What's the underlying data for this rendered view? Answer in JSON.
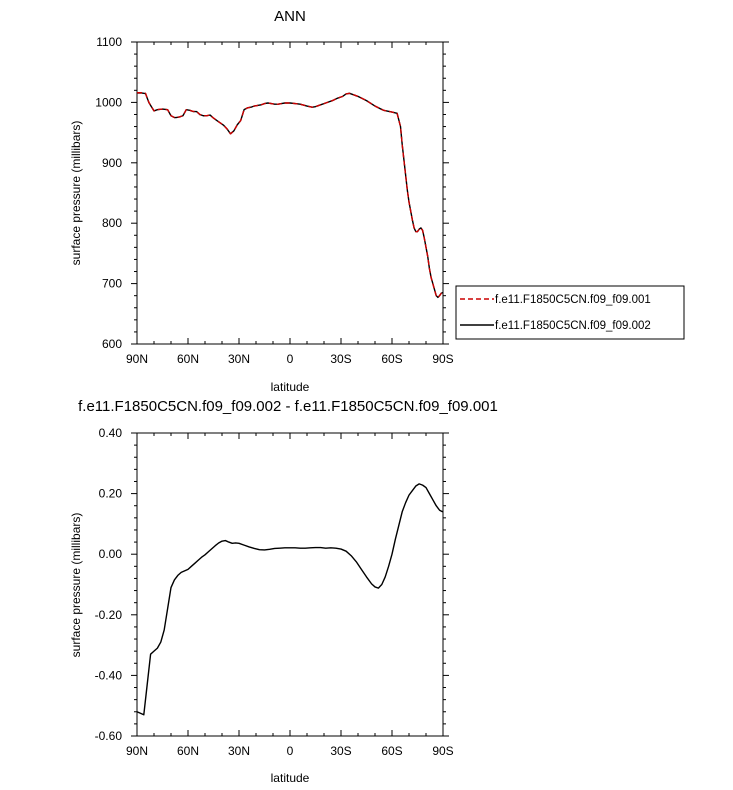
{
  "chart_data": [
    {
      "type": "line",
      "title": "ANN",
      "xlabel": "latitude",
      "ylabel": "surface pressure (millibars)",
      "xlim": [
        90,
        -90
      ],
      "ylim": [
        600,
        1100
      ],
      "x_ticks": [
        90,
        60,
        30,
        0,
        -30,
        -60,
        -90
      ],
      "x_tick_labels": [
        "90N",
        "60N",
        "30N",
        "0",
        "30S",
        "60S",
        "90S"
      ],
      "y_ticks": [
        600,
        700,
        800,
        900,
        1000,
        1100
      ],
      "y_tick_labels": [
        "600",
        "700",
        "800",
        "900",
        "1000",
        "1100"
      ],
      "grid": false,
      "legend_position": "outside-right",
      "series": [
        {
          "name": "f.e11.F1850C5CN.f09_f09.001",
          "color": "#cc0000",
          "dash": "dashed",
          "x": [
            90,
            87,
            85,
            83,
            80,
            78,
            75,
            72,
            70,
            68,
            67,
            65,
            63,
            61,
            59,
            57,
            55,
            53,
            51,
            49,
            47,
            45,
            43,
            41,
            39,
            37,
            35,
            33,
            31,
            29,
            27,
            25,
            23,
            21,
            19,
            17,
            15,
            13,
            11,
            9,
            7,
            5,
            3,
            0,
            -3,
            -6,
            -10,
            -13,
            -15,
            -18,
            -21,
            -25,
            -28,
            -31,
            -33,
            -35,
            -37,
            -40,
            -45,
            -50,
            -55,
            -60,
            -63,
            -65,
            -66,
            -67,
            -68,
            -69,
            -70,
            -71,
            -72,
            -73,
            -74,
            -75,
            -76,
            -77,
            -78,
            -79,
            -80,
            -81,
            -82,
            -83,
            -84,
            -85,
            -86,
            -87,
            -88,
            -89,
            -90
          ],
          "y": [
            1016,
            1016,
            1015,
            1000,
            986,
            988,
            989,
            988,
            978,
            975,
            975,
            976,
            978,
            988,
            987,
            985,
            985,
            980,
            978,
            978,
            979,
            974,
            970,
            966,
            962,
            956,
            948,
            953,
            963,
            970,
            988,
            991,
            992,
            994,
            995,
            996,
            998,
            999,
            998,
            997,
            997,
            998,
            999,
            999,
            998,
            997,
            994,
            992,
            993,
            996,
            999,
            1003,
            1007,
            1010,
            1014,
            1015,
            1013,
            1010,
            1003,
            994,
            987,
            984,
            982,
            960,
            930,
            905,
            880,
            855,
            835,
            820,
            805,
            792,
            786,
            786,
            790,
            792,
            788,
            775,
            760,
            745,
            725,
            710,
            700,
            690,
            680,
            677,
            680,
            684,
            685
          ]
        },
        {
          "name": "f.e11.F1850C5CN.f09_f09.002",
          "color": "#000000",
          "dash": "solid",
          "x": [
            90,
            87,
            85,
            83,
            80,
            78,
            75,
            72,
            70,
            68,
            67,
            65,
            63,
            61,
            59,
            57,
            55,
            53,
            51,
            49,
            47,
            45,
            43,
            41,
            39,
            37,
            35,
            33,
            31,
            29,
            27,
            25,
            23,
            21,
            19,
            17,
            15,
            13,
            11,
            9,
            7,
            5,
            3,
            0,
            -3,
            -6,
            -10,
            -13,
            -15,
            -18,
            -21,
            -25,
            -28,
            -31,
            -33,
            -35,
            -37,
            -40,
            -45,
            -50,
            -55,
            -60,
            -63,
            -65,
            -66,
            -67,
            -68,
            -69,
            -70,
            -71,
            -72,
            -73,
            -74,
            -75,
            -76,
            -77,
            -78,
            -79,
            -80,
            -81,
            -82,
            -83,
            -84,
            -85,
            -86,
            -87,
            -88,
            -89,
            -90
          ],
          "y": [
            1015.5,
            1015.5,
            1014.7,
            999.7,
            985.9,
            987.9,
            988.9,
            987.9,
            977.9,
            974.9,
            974.9,
            975.9,
            977.9,
            987.9,
            986.9,
            984.9,
            984.9,
            979.9,
            977.9,
            977.9,
            979.0,
            974.0,
            970.0,
            966.0,
            962.0,
            956.0,
            948.0,
            953.0,
            963.0,
            970.0,
            988.0,
            991.0,
            992.0,
            994.0,
            995.0,
            996.0,
            998.0,
            999.0,
            998.0,
            997.0,
            997.0,
            998.0,
            999.0,
            999.0,
            998.0,
            997.0,
            994.0,
            992.0,
            993.0,
            996.0,
            999.0,
            1003.0,
            1007.0,
            1010.0,
            1014.0,
            1015.0,
            1013.0,
            1009.9,
            1002.9,
            993.9,
            986.9,
            984.0,
            982.0,
            960.1,
            930.1,
            905.1,
            880.1,
            855.1,
            835.1,
            820.2,
            805.2,
            792.2,
            786.2,
            786.2,
            790.2,
            792.2,
            788.2,
            775.2,
            760.2,
            745.2,
            725.2,
            710.2,
            700.2,
            690.2,
            680.2,
            677.2,
            680.2,
            684.2,
            685.1
          ]
        }
      ]
    },
    {
      "type": "line",
      "title": "f.e11.F1850C5CN.f09_f09.002 - f.e11.F1850C5CN.f09_f09.001",
      "xlabel": "latitude",
      "ylabel": "surface pressure (millibars)",
      "xlim": [
        90,
        -90
      ],
      "ylim": [
        -0.6,
        0.4
      ],
      "x_ticks": [
        90,
        60,
        30,
        0,
        -30,
        -60,
        -90
      ],
      "x_tick_labels": [
        "90N",
        "60N",
        "30N",
        "0",
        "30S",
        "60S",
        "90S"
      ],
      "y_ticks": [
        -0.6,
        -0.4,
        -0.2,
        0.0,
        0.2,
        0.4
      ],
      "y_tick_labels": [
        "-0.60",
        "-0.40",
        "-0.20",
        "0.00",
        "0.20",
        "0.40"
      ],
      "grid": false,
      "series": [
        {
          "color": "#000000",
          "dash": "solid",
          "x": [
            90,
            88,
            86,
            84,
            82,
            80,
            78,
            76,
            74,
            72,
            70,
            68,
            66,
            64,
            62,
            60,
            58,
            56,
            54,
            52,
            50,
            48,
            46,
            44,
            42,
            40,
            38,
            36,
            34,
            32,
            30,
            27,
            24,
            21,
            18,
            15,
            12,
            9,
            6,
            3,
            0,
            -3,
            -6,
            -9,
            -12,
            -15,
            -18,
            -21,
            -24,
            -27,
            -30,
            -33,
            -36,
            -39,
            -42,
            -45,
            -48,
            -50,
            -52,
            -54,
            -56,
            -58,
            -60,
            -62,
            -64,
            -66,
            -68,
            -70,
            -72,
            -74,
            -76,
            -78,
            -80,
            -82,
            -84,
            -86,
            -88,
            -89,
            -90
          ],
          "y": [
            -0.52,
            -0.525,
            -0.53,
            -0.43,
            -0.33,
            -0.32,
            -0.31,
            -0.29,
            -0.25,
            -0.18,
            -0.11,
            -0.085,
            -0.07,
            -0.06,
            -0.055,
            -0.05,
            -0.04,
            -0.03,
            -0.02,
            -0.01,
            -0.002,
            0.008,
            0.018,
            0.028,
            0.037,
            0.043,
            0.045,
            0.04,
            0.036,
            0.037,
            0.036,
            0.03,
            0.024,
            0.019,
            0.015,
            0.014,
            0.016,
            0.019,
            0.02,
            0.021,
            0.021,
            0.021,
            0.02,
            0.02,
            0.021,
            0.022,
            0.022,
            0.02,
            0.021,
            0.02,
            0.017,
            0.01,
            -0.005,
            -0.025,
            -0.05,
            -0.075,
            -0.098,
            -0.108,
            -0.112,
            -0.1,
            -0.075,
            -0.04,
            0.0,
            0.05,
            0.095,
            0.14,
            0.17,
            0.195,
            0.21,
            0.225,
            0.232,
            0.228,
            0.22,
            0.2,
            0.18,
            0.16,
            0.145,
            0.142,
            0.14
          ]
        }
      ]
    }
  ]
}
